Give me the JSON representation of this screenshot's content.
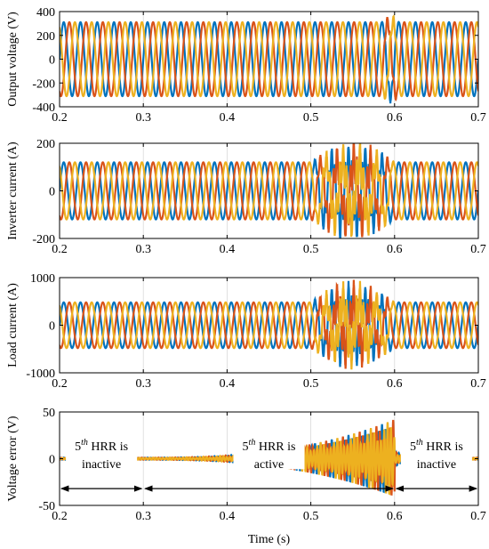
{
  "chart_data": [
    {
      "type": "line",
      "ylabel": "Output voltage (V)",
      "xlim": [
        0.2,
        0.7
      ],
      "ylim": [
        -400,
        400
      ],
      "xticks": [
        "0.2",
        "0.3",
        "0.4",
        "0.5",
        "0.6",
        "0.7"
      ],
      "yticks": [
        "400",
        "200",
        "0",
        "-200",
        "-400"
      ],
      "frequency_hz": 50,
      "series": [
        {
          "color": "#0072BD",
          "amplitude": 311,
          "phase_deg": 0
        },
        {
          "color": "#D95319",
          "amplitude": 311,
          "phase_deg": -120
        },
        {
          "color": "#EDB120",
          "amplitude": 311,
          "phase_deg": 120
        }
      ],
      "disturbance": {
        "start": 0.585,
        "end": 0.605,
        "peak": 350
      }
    },
    {
      "type": "line",
      "ylabel": "Inverter current (A)",
      "xlim": [
        0.2,
        0.7
      ],
      "ylim": [
        -200,
        200
      ],
      "xticks": [
        "0.2",
        "0.3",
        "0.4",
        "0.5",
        "0.6",
        "0.7"
      ],
      "yticks": [
        "200",
        "0",
        "-200"
      ],
      "frequency_hz": 50,
      "series": [
        {
          "color": "#0072BD",
          "amplitude": 120,
          "phase_deg": 0
        },
        {
          "color": "#D95319",
          "amplitude": 120,
          "phase_deg": -120
        },
        {
          "color": "#EDB120",
          "amplitude": 120,
          "phase_deg": 120
        }
      ],
      "disturbance": {
        "start": 0.5,
        "end": 0.6,
        "peak": 180
      }
    },
    {
      "type": "line",
      "ylabel": "Load current (A)",
      "xlim": [
        0.2,
        0.7
      ],
      "ylim": [
        -1000,
        1000
      ],
      "xticks": [
        "0.2",
        "0.3",
        "0.4",
        "0.5",
        "0.6",
        "0.7"
      ],
      "yticks": [
        "1000",
        "0",
        "-1000"
      ],
      "frequency_hz": 50,
      "series": [
        {
          "color": "#0072BD",
          "amplitude": 480,
          "phase_deg": 0
        },
        {
          "color": "#D95319",
          "amplitude": 480,
          "phase_deg": -120
        },
        {
          "color": "#EDB120",
          "amplitude": 480,
          "phase_deg": 120
        }
      ],
      "disturbance": {
        "start": 0.5,
        "end": 0.6,
        "peak": 780
      }
    },
    {
      "type": "line",
      "ylabel": "Voltage error (V)",
      "xlabel": "Time (s)",
      "xlim": [
        0.2,
        0.7
      ],
      "ylim": [
        -50,
        50
      ],
      "xticks": [
        "0.2",
        "0.3",
        "0.4",
        "0.5",
        "0.6",
        "0.7"
      ],
      "yticks": [
        "50",
        "0",
        "-50"
      ],
      "series": [
        {
          "color": "#0072BD",
          "phase_deg": 0
        },
        {
          "color": "#D95319",
          "phase_deg": -120
        },
        {
          "color": "#EDB120",
          "phase_deg": 120
        }
      ],
      "error_envelope": {
        "base": 1.2,
        "growth_start": 0.3,
        "peak_time": 0.6,
        "peak": 42,
        "decay_end": 0.64
      },
      "annotations": [
        {
          "label_sup": "th",
          "label_pre": "5",
          "label_post": " HRR is",
          "label2": "inactive",
          "x_from": 0.2,
          "x_to": 0.3
        },
        {
          "label_sup": "th",
          "label_pre": "5",
          "label_post": " HRR is",
          "label2": "active",
          "x_from": 0.3,
          "x_to": 0.6
        },
        {
          "label_sup": "th",
          "label_pre": "5",
          "label_post": " HRR is",
          "label2": "inactive",
          "x_from": 0.6,
          "x_to": 0.7
        }
      ]
    }
  ]
}
